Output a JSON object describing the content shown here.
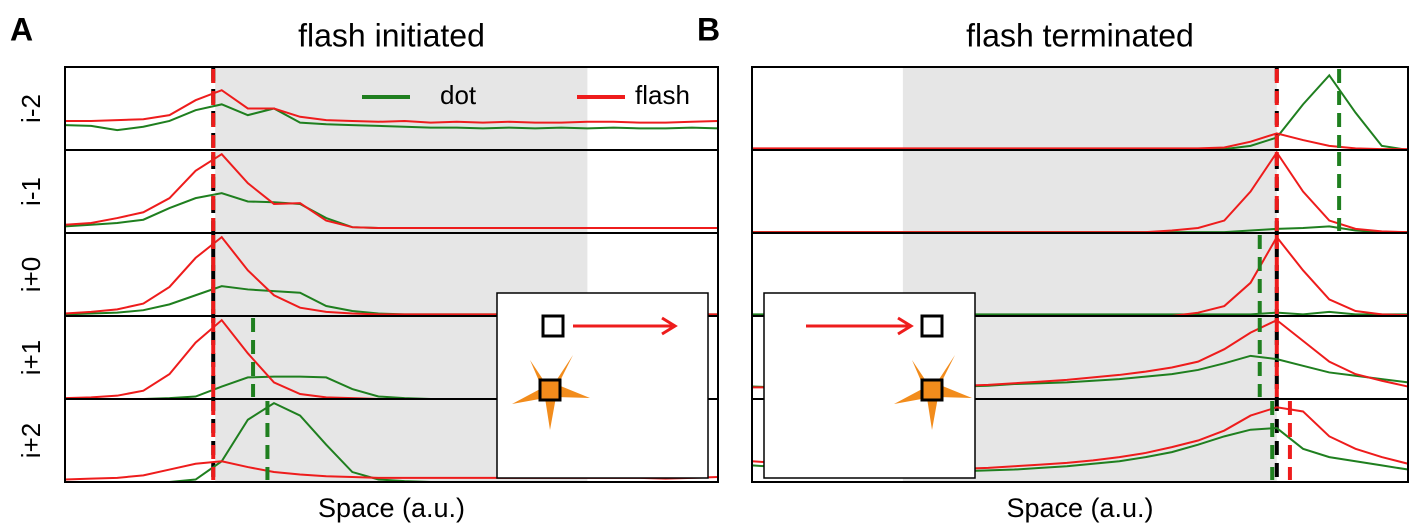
{
  "chart_data": [
    {
      "type": "line",
      "panel_label": "A",
      "title": "flash initiated",
      "xlabel": "Space (a.u.)",
      "row_labels": [
        "i-2",
        "i-1",
        "i+0",
        "i+1",
        "i+2"
      ],
      "xlim": [
        0,
        100
      ],
      "ylim": [
        0,
        1
      ],
      "x": [
        0,
        4,
        8,
        12,
        16,
        20,
        24,
        28,
        32,
        36,
        40,
        44,
        48,
        52,
        56,
        60,
        64,
        68,
        72,
        76,
        80,
        84,
        88,
        92,
        96,
        100
      ],
      "shaded_x": [
        23,
        80
      ],
      "reference_x": 22.7,
      "legend": "upper right",
      "series": [
        {
          "name": "dot",
          "color": "#1f7f1f",
          "peak_x": [
            22.7,
            22.7,
            22.7,
            28.8,
            31
          ],
          "values": [
            [
              0.3,
              0.29,
              0.24,
              0.28,
              0.35,
              0.48,
              0.55,
              0.42,
              0.5,
              0.33,
              0.31,
              0.3,
              0.29,
              0.28,
              0.27,
              0.27,
              0.26,
              0.27,
              0.26,
              0.27,
              0.26,
              0.27,
              0.26,
              0.26,
              0.27,
              0.26
            ],
            [
              0.08,
              0.1,
              0.12,
              0.16,
              0.3,
              0.42,
              0.48,
              0.38,
              0.37,
              0.35,
              0.18,
              0.07,
              0.06,
              0.06,
              0.06,
              0.06,
              0.06,
              0.06,
              0.06,
              0.06,
              0.06,
              0.06,
              0.06,
              0.06,
              0.06,
              0.06
            ],
            [
              0.02,
              0.03,
              0.04,
              0.07,
              0.14,
              0.25,
              0.36,
              0.32,
              0.3,
              0.28,
              0.12,
              0.06,
              0.03,
              0.02,
              0.02,
              0.02,
              0.02,
              0.02,
              0.02,
              0.02,
              0.02,
              0.02,
              0.02,
              0.02,
              0.02,
              0.02
            ],
            [
              0,
              0,
              0,
              0,
              0.01,
              0.03,
              0.15,
              0.26,
              0.27,
              0.27,
              0.26,
              0.12,
              0.03,
              0.01,
              0,
              0,
              0,
              0,
              0,
              0,
              0,
              0,
              0,
              0,
              0,
              0
            ],
            [
              0,
              0,
              0,
              0,
              0,
              0.03,
              0.25,
              0.75,
              0.95,
              0.8,
              0.45,
              0.12,
              0.03,
              0.01,
              0,
              0,
              0,
              0,
              0,
              0,
              0,
              0,
              0,
              0,
              0,
              0
            ]
          ]
        },
        {
          "name": "flash",
          "color": "#ee1c1c",
          "peak_x": [
            22.7,
            22.7,
            22.7,
            22.7,
            22.7
          ],
          "values": [
            [
              0.35,
              0.35,
              0.36,
              0.37,
              0.42,
              0.6,
              0.72,
              0.5,
              0.5,
              0.4,
              0.36,
              0.35,
              0.34,
              0.35,
              0.33,
              0.34,
              0.33,
              0.34,
              0.33,
              0.33,
              0.34,
              0.34,
              0.33,
              0.33,
              0.34,
              0.35
            ],
            [
              0.1,
              0.12,
              0.18,
              0.25,
              0.42,
              0.75,
              0.95,
              0.6,
              0.35,
              0.36,
              0.15,
              0.07,
              0.06,
              0.06,
              0.06,
              0.06,
              0.06,
              0.06,
              0.06,
              0.06,
              0.06,
              0.06,
              0.06,
              0.06,
              0.06,
              0.06
            ],
            [
              0.03,
              0.05,
              0.08,
              0.15,
              0.35,
              0.7,
              0.95,
              0.55,
              0.25,
              0.1,
              0.05,
              0.03,
              0.02,
              0.02,
              0.02,
              0.02,
              0.02,
              0.02,
              0.02,
              0.02,
              0.02,
              0.02,
              0.02,
              0.02,
              0.02,
              0.02
            ],
            [
              0.01,
              0.02,
              0.04,
              0.1,
              0.3,
              0.68,
              0.95,
              0.55,
              0.2,
              0.06,
              0.02,
              0.01,
              0,
              0,
              0,
              0,
              0,
              0,
              0,
              0,
              0,
              0,
              0,
              0,
              0,
              0
            ],
            [
              0.03,
              0.04,
              0.05,
              0.08,
              0.15,
              0.22,
              0.25,
              0.18,
              0.12,
              0.09,
              0.07,
              0.06,
              0.05,
              0.05,
              0.05,
              0.05,
              0.05,
              0.05,
              0.05,
              0.05,
              0.05,
              0.05,
              0.05,
              0.04,
              0.05,
              0.06
            ]
          ]
        }
      ]
    },
    {
      "type": "line",
      "panel_label": "B",
      "title": "flash terminated",
      "xlabel": "Space (a.u.)",
      "xlim": [
        0,
        100
      ],
      "ylim": [
        0,
        1
      ],
      "x": [
        0,
        4,
        8,
        12,
        16,
        20,
        24,
        28,
        32,
        36,
        40,
        44,
        48,
        52,
        56,
        60,
        64,
        68,
        72,
        76,
        80,
        84,
        88,
        92,
        96,
        100
      ],
      "shaded_x": [
        23,
        80
      ],
      "reference_x": 80,
      "series": [
        {
          "color": "#1f7f1f",
          "peak_x": [
            89.5,
            89.5,
            77.4,
            77.4,
            79.3
          ],
          "values": [
            [
              0,
              0,
              0,
              0,
              0,
              0,
              0,
              0,
              0,
              0,
              0,
              0,
              0,
              0,
              0,
              0,
              0,
              0,
              0.01,
              0.05,
              0.15,
              0.55,
              0.9,
              0.45,
              0.05,
              0
            ],
            [
              0.01,
              0.01,
              0.01,
              0.01,
              0.01,
              0.01,
              0.01,
              0.01,
              0.01,
              0.01,
              0.01,
              0.01,
              0.01,
              0.01,
              0.01,
              0.01,
              0.01,
              0.01,
              0.01,
              0.03,
              0.05,
              0.06,
              0.08,
              0.03,
              0.01,
              0.01
            ],
            [
              0.02,
              0.02,
              0.02,
              0.02,
              0.02,
              0.02,
              0.02,
              0.02,
              0.02,
              0.02,
              0.02,
              0.02,
              0.02,
              0.02,
              0.02,
              0.02,
              0.02,
              0.02,
              0.02,
              0.02,
              0.04,
              0.02,
              0.05,
              0.02,
              0.02,
              0.02
            ],
            [
              0.15,
              0.14,
              0.13,
              0.12,
              0.12,
              0.12,
              0.13,
              0.14,
              0.15,
              0.16,
              0.18,
              0.19,
              0.2,
              0.22,
              0.24,
              0.27,
              0.3,
              0.35,
              0.43,
              0.52,
              0.48,
              0.4,
              0.32,
              0.28,
              0.24,
              0.2
            ],
            [
              0.2,
              0.18,
              0.16,
              0.14,
              0.13,
              0.12,
              0.12,
              0.12,
              0.13,
              0.14,
              0.15,
              0.17,
              0.19,
              0.22,
              0.25,
              0.3,
              0.36,
              0.45,
              0.55,
              0.63,
              0.65,
              0.4,
              0.3,
              0.25,
              0.2,
              0.15
            ]
          ]
        },
        {
          "color": "#ee1c1c",
          "peak_x": [
            80,
            80,
            80,
            80,
            82
          ],
          "values": [
            [
              0.02,
              0.02,
              0.02,
              0.02,
              0.02,
              0.02,
              0.02,
              0.02,
              0.02,
              0.02,
              0.02,
              0.02,
              0.02,
              0.02,
              0.02,
              0.02,
              0.02,
              0.02,
              0.03,
              0.1,
              0.2,
              0.12,
              0.05,
              0.02,
              0.01,
              0.01
            ],
            [
              0.01,
              0.01,
              0.01,
              0.01,
              0.01,
              0.01,
              0.01,
              0.01,
              0.01,
              0.01,
              0.01,
              0.01,
              0.01,
              0.01,
              0.01,
              0.01,
              0.03,
              0.06,
              0.15,
              0.5,
              0.97,
              0.5,
              0.15,
              0.05,
              0.02,
              0.01
            ],
            [
              0,
              0,
              0,
              0,
              0,
              0,
              0,
              0,
              0,
              0,
              0,
              0,
              0,
              0,
              0,
              0,
              0,
              0.04,
              0.12,
              0.4,
              0.95,
              0.55,
              0.2,
              0.06,
              0.02,
              0.01
            ],
            [
              0.14,
              0.14,
              0.13,
              0.13,
              0.13,
              0.13,
              0.14,
              0.15,
              0.16,
              0.17,
              0.19,
              0.21,
              0.23,
              0.26,
              0.29,
              0.33,
              0.38,
              0.45,
              0.6,
              0.8,
              0.95,
              0.7,
              0.45,
              0.3,
              0.22,
              0.15
            ],
            [
              0.25,
              0.23,
              0.21,
              0.19,
              0.17,
              0.16,
              0.15,
              0.15,
              0.16,
              0.17,
              0.19,
              0.21,
              0.23,
              0.26,
              0.3,
              0.35,
              0.42,
              0.5,
              0.62,
              0.8,
              0.9,
              0.85,
              0.55,
              0.4,
              0.3,
              0.22
            ]
          ]
        }
      ]
    }
  ]
}
